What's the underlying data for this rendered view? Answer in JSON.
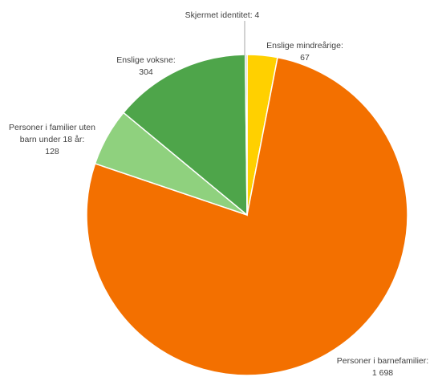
{
  "chart_data": {
    "type": "pie",
    "slices": [
      {
        "name": "Enslige mindreårige",
        "value": 67,
        "value_label": "67",
        "color": "#FFD000"
      },
      {
        "name": "Personer i barnefamilier",
        "value": 1698,
        "value_label": "1 698",
        "color": "#F37000"
      },
      {
        "name": "Personer i familier uten barn under 18 år",
        "value": 128,
        "value_label": "128",
        "color": "#8FD17E"
      },
      {
        "name": "Enslige voksne",
        "value": 304,
        "value_label": "304",
        "color": "#4EA54A"
      },
      {
        "name": "Skjermet identitet",
        "value": 4,
        "value_label": "4",
        "color": "#A6A6A6"
      }
    ],
    "labels": {
      "s0_line1": "Enslige mindreårige:",
      "s0_line2": "67",
      "s1_line1": "Personer i barnefamilier:",
      "s1_line2": "1 698",
      "s2_line1": "Personer i familier uten",
      "s2_line2": "barn under 18 år:",
      "s2_line3": "128",
      "s3_line1": "Enslige voksne:",
      "s3_line2": "304",
      "s4_line1": "Skjermet identitet: 4"
    },
    "start_angle_deg": 0,
    "direction": "clockwise",
    "legend": "none"
  }
}
